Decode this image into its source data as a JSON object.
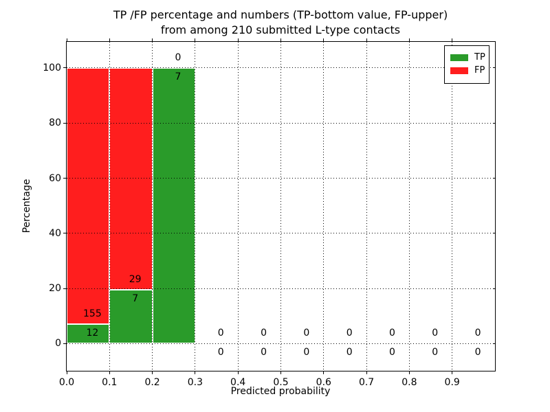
{
  "title": {
    "line1": "TP /FP percentage and numbers (TP-bottom value, FP-upper)",
    "line2": "from among 210 submitted L-type contacts"
  },
  "chart_data": {
    "type": "bar",
    "stacked": true,
    "title": "TP /FP percentage and numbers (TP-bottom value, FP-upper) from among 210 submitted L-type contacts",
    "xlabel": "Predicted probability",
    "ylabel": "Percentage",
    "total_submitted": 210,
    "xlim": [
      0.0,
      1.0
    ],
    "ylim": [
      -9.84,
      109.46
    ],
    "grid": true,
    "x_ticks": [
      0.0,
      0.1,
      0.2,
      0.3,
      0.4,
      0.5,
      0.6,
      0.7,
      0.8,
      0.9
    ],
    "x_tick_labels": [
      "0.0",
      "0.1",
      "0.2",
      "0.3",
      "0.4",
      "0.5",
      "0.6",
      "0.7",
      "0.8",
      "0.9"
    ],
    "y_ticks": [
      0,
      20,
      40,
      60,
      80,
      100
    ],
    "y_tick_labels": [
      "0",
      "20",
      "40",
      "60",
      "80",
      "100"
    ],
    "legend": {
      "position": "upper right",
      "entries": [
        {
          "label": "TP",
          "color": "#2a9b2a"
        },
        {
          "label": "FP",
          "color": "#ff1e1e"
        }
      ]
    },
    "series_note": "Each 0.1-wide bin stacks TP (green, bottom) and FP (red, top) as percentages of the bin total; counts are printed at the TP/FP boundary (TP below, FP above).",
    "bins": [
      {
        "x0": 0.0,
        "x1": 0.1,
        "tp": 12,
        "fp": 155,
        "tp_pct": 7.19,
        "fp_pct": 92.81
      },
      {
        "x0": 0.1,
        "x1": 0.2,
        "tp": 7,
        "fp": 29,
        "tp_pct": 19.44,
        "fp_pct": 80.56
      },
      {
        "x0": 0.2,
        "x1": 0.3,
        "tp": 7,
        "fp": 0,
        "tp_pct": 100.0,
        "fp_pct": 0.0
      },
      {
        "x0": 0.3,
        "x1": 0.4,
        "tp": 0,
        "fp": 0,
        "tp_pct": 0.0,
        "fp_pct": 0.0
      },
      {
        "x0": 0.4,
        "x1": 0.5,
        "tp": 0,
        "fp": 0,
        "tp_pct": 0.0,
        "fp_pct": 0.0
      },
      {
        "x0": 0.5,
        "x1": 0.6,
        "tp": 0,
        "fp": 0,
        "tp_pct": 0.0,
        "fp_pct": 0.0
      },
      {
        "x0": 0.6,
        "x1": 0.7,
        "tp": 0,
        "fp": 0,
        "tp_pct": 0.0,
        "fp_pct": 0.0
      },
      {
        "x0": 0.7,
        "x1": 0.8,
        "tp": 0,
        "fp": 0,
        "tp_pct": 0.0,
        "fp_pct": 0.0
      },
      {
        "x0": 0.8,
        "x1": 0.9,
        "tp": 0,
        "fp": 0,
        "tp_pct": 0.0,
        "fp_pct": 0.0
      },
      {
        "x0": 0.9,
        "x1": 1.0,
        "tp": 0,
        "fp": 0,
        "tp_pct": 0.0,
        "fp_pct": 0.0
      }
    ]
  }
}
